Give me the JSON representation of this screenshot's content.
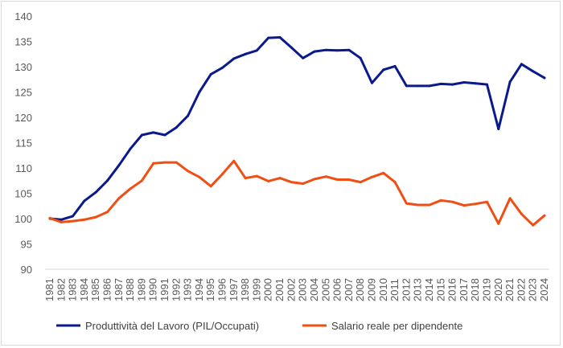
{
  "chart_data": {
    "type": "line",
    "title": "",
    "xlabel": "",
    "ylabel": "",
    "ylim": [
      90,
      140
    ],
    "yticks": [
      90,
      95,
      100,
      105,
      110,
      115,
      120,
      125,
      130,
      135,
      140
    ],
    "x": [
      1981,
      1982,
      1983,
      1984,
      1985,
      1986,
      1987,
      1988,
      1989,
      1990,
      1991,
      1992,
      1993,
      1994,
      1995,
      1996,
      1997,
      1998,
      1999,
      2000,
      2001,
      2002,
      2003,
      2004,
      2005,
      2006,
      2007,
      2008,
      2009,
      2010,
      2011,
      2012,
      2013,
      2014,
      2015,
      2016,
      2017,
      2018,
      2019,
      2020,
      2021,
      2022,
      2023,
      2024
    ],
    "grid": false,
    "legend_position": "bottom",
    "series": [
      {
        "name": "Produttività del Lavoro (PIL/Occupati)",
        "color": "#0a1a8c",
        "values": [
          100.0,
          99.8,
          100.5,
          103.5,
          105.2,
          107.5,
          110.5,
          113.8,
          116.5,
          117.0,
          116.5,
          118.0,
          120.3,
          125.0,
          128.5,
          129.8,
          131.6,
          132.5,
          133.2,
          135.7,
          135.8,
          133.8,
          131.7,
          133.0,
          133.3,
          133.2,
          133.3,
          131.7,
          126.8,
          129.4,
          130.1,
          126.2,
          126.2,
          126.2,
          126.6,
          126.5,
          126.9,
          126.7,
          126.5,
          117.7,
          127.0,
          130.5,
          129.1,
          127.8
        ]
      },
      {
        "name": "Salario reale per dipendente",
        "color": "#f04e12",
        "values": [
          100.1,
          99.3,
          99.5,
          99.8,
          100.3,
          101.3,
          104.0,
          105.9,
          107.5,
          110.9,
          111.1,
          111.1,
          109.4,
          108.2,
          106.4,
          108.8,
          111.4,
          108.0,
          108.4,
          107.4,
          108.0,
          107.2,
          106.9,
          107.8,
          108.3,
          107.7,
          107.7,
          107.2,
          108.2,
          109.0,
          107.2,
          103.0,
          102.7,
          102.7,
          103.6,
          103.3,
          102.6,
          102.9,
          103.3,
          99.0,
          104.0,
          100.9,
          98.7,
          100.6
        ]
      }
    ]
  }
}
